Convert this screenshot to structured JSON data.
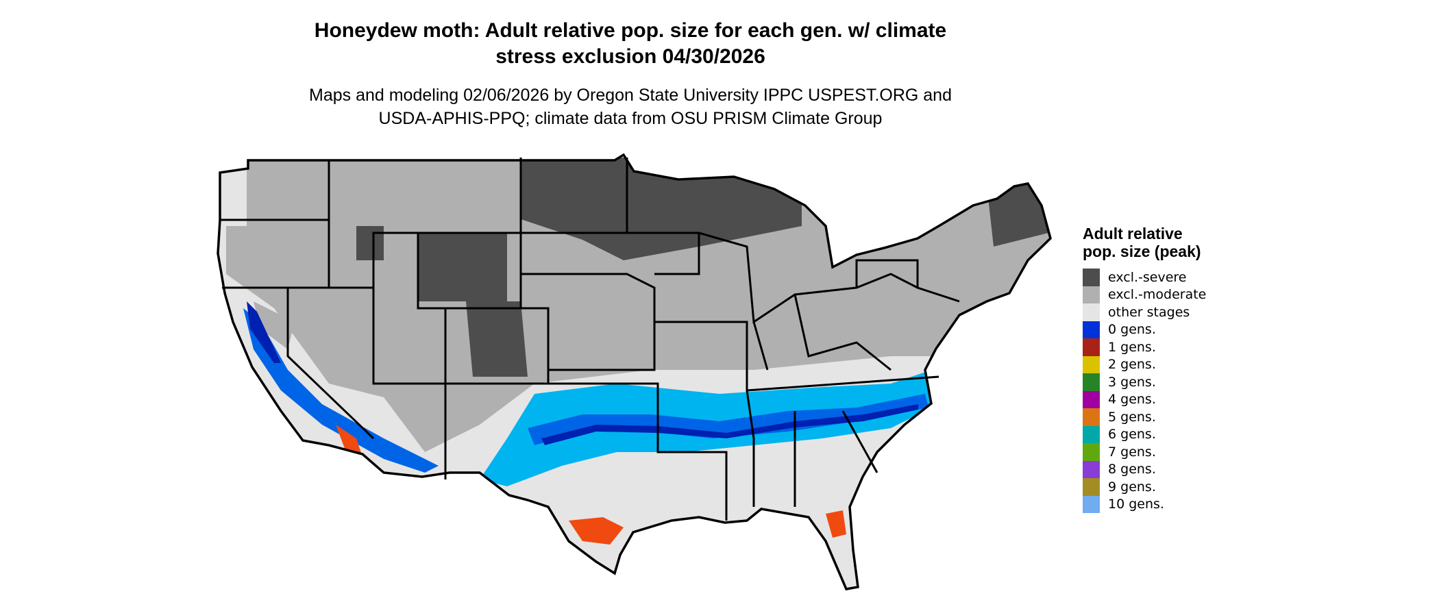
{
  "title": "Honeydew moth: Adult relative pop. size for each gen. w/ climate stress exclusion 04/30/2026",
  "title_line1": "Honeydew moth: Adult relative pop. size for each gen. w/ climate",
  "title_line2": "stress exclusion 04/30/2026",
  "subtitle_line1": "Maps and modeling 02/06/2026 by Oregon State University IPPC USPEST.ORG and",
  "subtitle_line2": "USDA-APHIS-PPQ; climate data from OSU PRISM Climate Group",
  "legend": {
    "title": "Adult relative pop. size (peak)",
    "items": [
      {
        "label": "excl.-severe",
        "color": "#4d4d4d"
      },
      {
        "label": "excl.-moderate",
        "color": "#b0b0b0"
      },
      {
        "label": "other stages",
        "color": "#e5e5e5"
      },
      {
        "label": "0 gens.",
        "color": "#0032d8"
      },
      {
        "label": "1 gens.",
        "color": "#a82315"
      },
      {
        "label": "2 gens.",
        "color": "#dbc200"
      },
      {
        "label": "3 gens.",
        "color": "#268426"
      },
      {
        "label": "4 gens.",
        "color": "#a000a0"
      },
      {
        "label": "5 gens.",
        "color": "#dc7414"
      },
      {
        "label": "6 gens.",
        "color": "#00a8a8"
      },
      {
        "label": "7 gens.",
        "color": "#60a810"
      },
      {
        "label": "8 gens.",
        "color": "#8a3cd6"
      },
      {
        "label": "9 gens.",
        "color": "#a48c24"
      },
      {
        "label": "10 gens.",
        "color": "#70acf0"
      }
    ]
  },
  "map_colors": {
    "band_light_blue": "#00b4f0",
    "band_blue": "#0064e6",
    "band_dark_blue": "#0020b0",
    "hotspot_orange": "#f04a10",
    "state_border": "#000000"
  }
}
